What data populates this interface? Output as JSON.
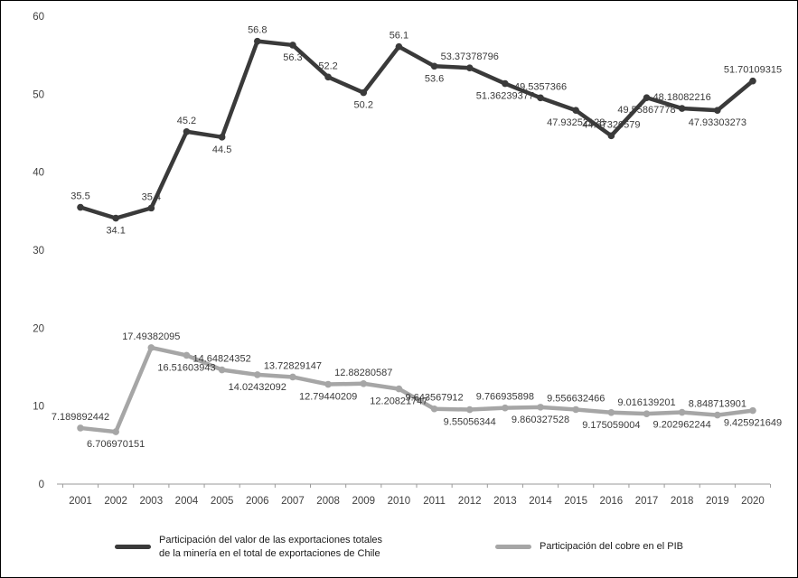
{
  "chart_data": {
    "type": "line",
    "title": "",
    "xlabel": "",
    "ylabel": "",
    "ylim": [
      0,
      60
    ],
    "yticks": [
      0,
      10,
      20,
      30,
      40,
      50,
      60
    ],
    "grid": false,
    "legend_position": "bottom",
    "x": [
      "2001",
      "2002",
      "2003",
      "2004",
      "2005",
      "2006",
      "2007",
      "2008",
      "2009",
      "2010",
      "2011",
      "2012",
      "2013",
      "2014",
      "2015",
      "2016",
      "2017",
      "2018",
      "2019",
      "2020"
    ],
    "series": [
      {
        "name": "Participación del valor de las exportaciones totales de la minería en el total de exportaciones de Chile",
        "color": "#3a3a3a",
        "values": [
          35.5,
          34.1,
          35.4,
          45.2,
          44.5,
          56.8,
          56.3,
          52.2,
          50.2,
          56.1,
          53.6,
          53.37378796,
          51.36239377,
          49.5357366,
          47.93252128,
          44.67320579,
          49.55867778,
          48.18082216,
          47.93303273,
          51.70109315
        ],
        "labels": [
          "35.5",
          "34.1",
          "35.4",
          "45.2",
          "44.5",
          "56.8",
          "56.3",
          "52.2",
          "50.2",
          "56.1",
          "53.6",
          "53.37378796",
          "51.36239377",
          "49.5357366",
          "47.93252128",
          "44.67320579",
          "49.55867778",
          "48.18082216",
          "47.93303273",
          "51.70109315"
        ],
        "label_positions": [
          "above",
          "below",
          "above",
          "above",
          "below",
          "above",
          "below",
          "above",
          "below",
          "above",
          "below",
          "above",
          "below",
          "above",
          "below",
          "above",
          "below",
          "above",
          "below",
          "above"
        ]
      },
      {
        "name": "Participación del cobre en el PIB",
        "color": "#a6a6a6",
        "values": [
          7.189892442,
          6.706970151,
          17.49382095,
          16.51603943,
          14.64824352,
          14.02432092,
          13.72829147,
          12.79440209,
          12.88280587,
          12.20821747,
          9.643567912,
          9.55056344,
          9.766935898,
          9.860327528,
          9.556632466,
          9.175059004,
          9.016139201,
          9.202962244,
          8.848713901,
          9.425921649
        ],
        "labels": [
          "7.189892442",
          "6.706970151",
          "17.49382095",
          "16.51603943",
          "14.64824352",
          "14.02432092",
          "13.72829147",
          "12.79440209",
          "12.88280587",
          "12.20821747",
          "9.643567912",
          "9.55056344",
          "9.766935898",
          "9.860327528",
          "9.556632466",
          "9.175059004",
          "9.016139201",
          "9.202962244",
          "8.848713901",
          "9.425921649"
        ],
        "label_positions": [
          "above",
          "below",
          "above",
          "below",
          "above",
          "below",
          "above",
          "below",
          "above",
          "below",
          "above",
          "below",
          "above",
          "below",
          "above",
          "below",
          "above",
          "below",
          "above",
          "below"
        ]
      }
    ]
  }
}
